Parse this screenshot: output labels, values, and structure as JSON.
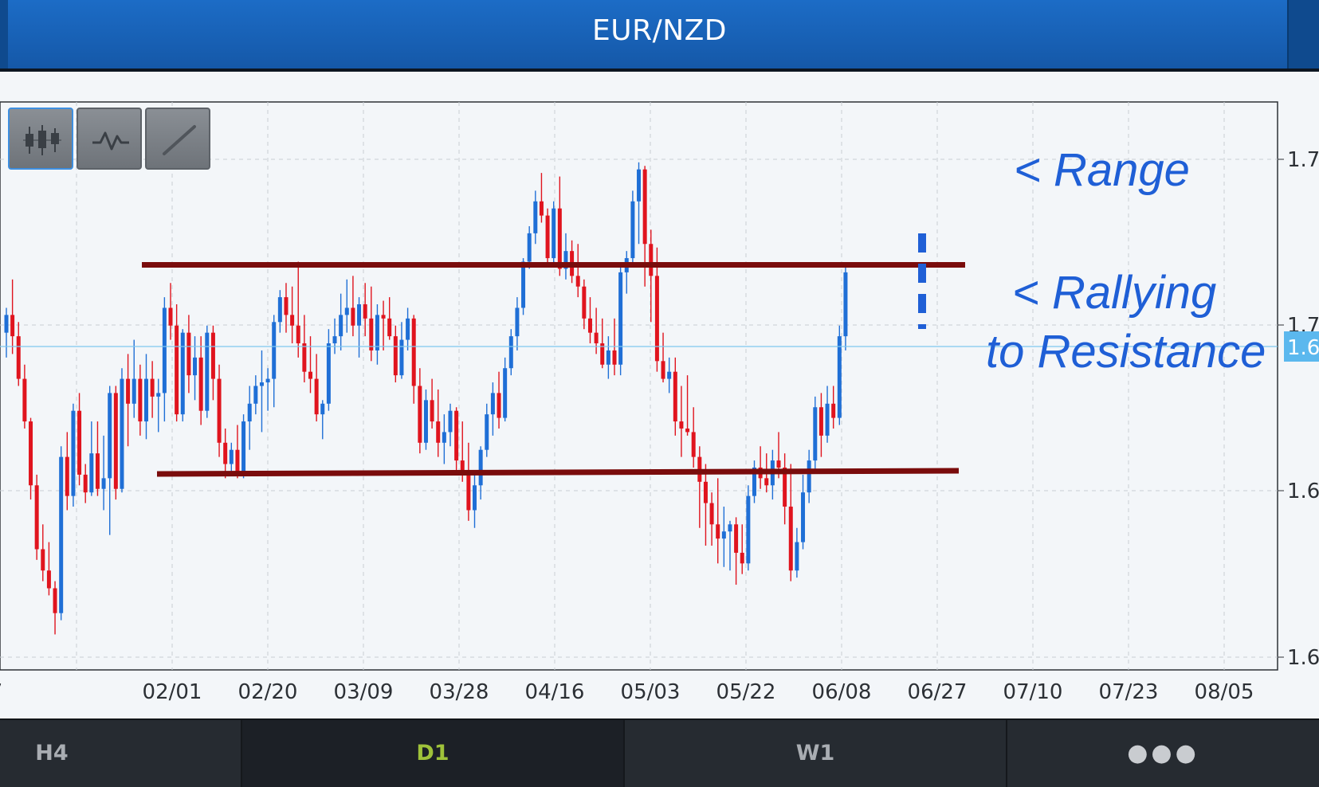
{
  "header": {
    "title": "EUR/NZD"
  },
  "toolbar": {
    "buttons": [
      {
        "name": "candlestick-chart-button",
        "icon": "candlestick-icon",
        "active": true
      },
      {
        "name": "line-chart-button",
        "icon": "line-chart-icon",
        "active": false
      },
      {
        "name": "draw-line-button",
        "icon": "trendline-icon",
        "active": false
      }
    ]
  },
  "timeframes": {
    "h4": "H4",
    "d1": "D1",
    "w1": "W1",
    "more": "●●●"
  },
  "annotations": {
    "range": "< Range",
    "rallying_line1": "< Rallying",
    "rallying_line2": "to Resistance"
  },
  "colors": {
    "bull": "#1f6fd6",
    "bear": "#e0141e",
    "sr_line": "#7a0c0c",
    "annotation": "#1f5fd6",
    "price_line": "#7ec8f0",
    "price_tag": "#5bb8ee",
    "active_tab": "#9fc23a"
  },
  "chart_data": {
    "type": "candlestick",
    "symbol": "EUR/NZD",
    "timeframe": "D1",
    "x_tick_labels": [
      "7",
      "02/01",
      "02/20",
      "03/09",
      "03/28",
      "04/16",
      "05/03",
      "05/22",
      "06/08",
      "06/27",
      "07/10",
      "07/23",
      "08/05"
    ],
    "y_tick_labels": [
      "1.7",
      "1.7",
      "1.6",
      "1.6"
    ],
    "current_price_label": "1.6",
    "ylim": [
      1.57,
      1.73
    ],
    "resistance": 1.685,
    "support": 1.623,
    "candles": [
      [
        1.665,
        1.672,
        1.658,
        1.67
      ],
      [
        1.67,
        1.68,
        1.659,
        1.664
      ],
      [
        1.664,
        1.668,
        1.65,
        1.652
      ],
      [
        1.652,
        1.656,
        1.638,
        1.64
      ],
      [
        1.64,
        1.641,
        1.618,
        1.622
      ],
      [
        1.622,
        1.625,
        1.601,
        1.604
      ],
      [
        1.604,
        1.611,
        1.595,
        1.598
      ],
      [
        1.598,
        1.606,
        1.591,
        1.593
      ],
      [
        1.593,
        1.595,
        1.58,
        1.586
      ],
      [
        1.586,
        1.633,
        1.584,
        1.63
      ],
      [
        1.63,
        1.637,
        1.615,
        1.619
      ],
      [
        1.619,
        1.645,
        1.616,
        1.643
      ],
      [
        1.643,
        1.648,
        1.622,
        1.625
      ],
      [
        1.625,
        1.628,
        1.617,
        1.62
      ],
      [
        1.62,
        1.64,
        1.619,
        1.631
      ],
      [
        1.631,
        1.64,
        1.619,
        1.621
      ],
      [
        1.621,
        1.636,
        1.615,
        1.624
      ],
      [
        1.624,
        1.65,
        1.608,
        1.648
      ],
      [
        1.648,
        1.65,
        1.618,
        1.621
      ],
      [
        1.621,
        1.655,
        1.62,
        1.652
      ],
      [
        1.652,
        1.659,
        1.633,
        1.645
      ],
      [
        1.645,
        1.663,
        1.641,
        1.652
      ],
      [
        1.652,
        1.656,
        1.636,
        1.64
      ],
      [
        1.64,
        1.659,
        1.635,
        1.652
      ],
      [
        1.652,
        1.657,
        1.641,
        1.647
      ],
      [
        1.647,
        1.652,
        1.637,
        1.648
      ],
      [
        1.648,
        1.675,
        1.64,
        1.672
      ],
      [
        1.672,
        1.679,
        1.663,
        1.667
      ],
      [
        1.667,
        1.673,
        1.64,
        1.642
      ],
      [
        1.642,
        1.666,
        1.64,
        1.665
      ],
      [
        1.665,
        1.67,
        1.648,
        1.653
      ],
      [
        1.653,
        1.664,
        1.646,
        1.658
      ],
      [
        1.658,
        1.664,
        1.639,
        1.643
      ],
      [
        1.643,
        1.667,
        1.641,
        1.665
      ],
      [
        1.665,
        1.667,
        1.646,
        1.652
      ],
      [
        1.652,
        1.656,
        1.63,
        1.634
      ],
      [
        1.634,
        1.638,
        1.624,
        1.628
      ],
      [
        1.628,
        1.634,
        1.625,
        1.632
      ],
      [
        1.632,
        1.639,
        1.624,
        1.625
      ],
      [
        1.625,
        1.642,
        1.624,
        1.64
      ],
      [
        1.64,
        1.65,
        1.632,
        1.645
      ],
      [
        1.645,
        1.653,
        1.642,
        1.65
      ],
      [
        1.65,
        1.66,
        1.637,
        1.651
      ],
      [
        1.651,
        1.655,
        1.643,
        1.652
      ],
      [
        1.652,
        1.67,
        1.644,
        1.668
      ],
      [
        1.668,
        1.677,
        1.665,
        1.675
      ],
      [
        1.675,
        1.679,
        1.665,
        1.67
      ],
      [
        1.67,
        1.678,
        1.662,
        1.667
      ],
      [
        1.667,
        1.685,
        1.658,
        1.662
      ],
      [
        1.662,
        1.67,
        1.651,
        1.654
      ],
      [
        1.654,
        1.664,
        1.648,
        1.652
      ],
      [
        1.652,
        1.659,
        1.64,
        1.642
      ],
      [
        1.642,
        1.646,
        1.635,
        1.645
      ],
      [
        1.645,
        1.666,
        1.643,
        1.662
      ],
      [
        1.662,
        1.669,
        1.659,
        1.664
      ],
      [
        1.664,
        1.676,
        1.66,
        1.67
      ],
      [
        1.67,
        1.68,
        1.665,
        1.672
      ],
      [
        1.672,
        1.681,
        1.664,
        1.667
      ],
      [
        1.667,
        1.675,
        1.658,
        1.673
      ],
      [
        1.673,
        1.679,
        1.664,
        1.669
      ],
      [
        1.669,
        1.678,
        1.657,
        1.66
      ],
      [
        1.66,
        1.673,
        1.656,
        1.67
      ],
      [
        1.67,
        1.674,
        1.66,
        1.669
      ],
      [
        1.669,
        1.675,
        1.663,
        1.664
      ],
      [
        1.664,
        1.667,
        1.651,
        1.653
      ],
      [
        1.653,
        1.668,
        1.652,
        1.663
      ],
      [
        1.663,
        1.672,
        1.66,
        1.669
      ],
      [
        1.669,
        1.67,
        1.645,
        1.65
      ],
      [
        1.65,
        1.655,
        1.631,
        1.634
      ],
      [
        1.634,
        1.649,
        1.632,
        1.646
      ],
      [
        1.646,
        1.652,
        1.638,
        1.64
      ],
      [
        1.64,
        1.649,
        1.63,
        1.634
      ],
      [
        1.634,
        1.642,
        1.628,
        1.637
      ],
      [
        1.637,
        1.645,
        1.633,
        1.643
      ],
      [
        1.643,
        1.644,
        1.626,
        1.629
      ],
      [
        1.629,
        1.64,
        1.623,
        1.626
      ],
      [
        1.626,
        1.634,
        1.612,
        1.615
      ],
      [
        1.615,
        1.625,
        1.61,
        1.622
      ],
      [
        1.622,
        1.633,
        1.618,
        1.632
      ],
      [
        1.632,
        1.645,
        1.63,
        1.642
      ],
      [
        1.642,
        1.651,
        1.636,
        1.648
      ],
      [
        1.648,
        1.654,
        1.638,
        1.641
      ],
      [
        1.641,
        1.658,
        1.64,
        1.655
      ],
      [
        1.655,
        1.666,
        1.653,
        1.664
      ],
      [
        1.664,
        1.675,
        1.66,
        1.672
      ],
      [
        1.672,
        1.686,
        1.67,
        1.685
      ],
      [
        1.685,
        1.695,
        1.683,
        1.693
      ],
      [
        1.693,
        1.705,
        1.69,
        1.702
      ],
      [
        1.702,
        1.71,
        1.696,
        1.698
      ],
      [
        1.698,
        1.7,
        1.684,
        1.686
      ],
      [
        1.686,
        1.702,
        1.684,
        1.7
      ],
      [
        1.7,
        1.709,
        1.681,
        1.683
      ],
      [
        1.683,
        1.693,
        1.68,
        1.688
      ],
      [
        1.688,
        1.691,
        1.679,
        1.681
      ],
      [
        1.681,
        1.69,
        1.675,
        1.678
      ],
      [
        1.678,
        1.68,
        1.666,
        1.669
      ],
      [
        1.669,
        1.675,
        1.662,
        1.665
      ],
      [
        1.665,
        1.672,
        1.659,
        1.662
      ],
      [
        1.662,
        1.669,
        1.655,
        1.656
      ],
      [
        1.656,
        1.664,
        1.652,
        1.66
      ],
      [
        1.66,
        1.669,
        1.653,
        1.656
      ],
      [
        1.656,
        1.684,
        1.653,
        1.682
      ],
      [
        1.682,
        1.688,
        1.676,
        1.686
      ],
      [
        1.686,
        1.705,
        1.684,
        1.702
      ],
      [
        1.702,
        1.713,
        1.69,
        1.711
      ],
      [
        1.711,
        1.712,
        1.678,
        1.69
      ],
      [
        1.69,
        1.694,
        1.668,
        1.681
      ],
      [
        1.681,
        1.689,
        1.654,
        1.657
      ],
      [
        1.657,
        1.665,
        1.651,
        1.652
      ],
      [
        1.652,
        1.658,
        1.648,
        1.654
      ],
      [
        1.654,
        1.658,
        1.636,
        1.64
      ],
      [
        1.64,
        1.65,
        1.63,
        1.638
      ],
      [
        1.638,
        1.653,
        1.636,
        1.637
      ],
      [
        1.637,
        1.644,
        1.627,
        1.63
      ],
      [
        1.63,
        1.633,
        1.61,
        1.623
      ],
      [
        1.623,
        1.628,
        1.605,
        1.617
      ],
      [
        1.617,
        1.62,
        1.605,
        1.611
      ],
      [
        1.611,
        1.624,
        1.6,
        1.607
      ],
      [
        1.607,
        1.616,
        1.599,
        1.609
      ],
      [
        1.609,
        1.612,
        1.598,
        1.611
      ],
      [
        1.611,
        1.613,
        1.594,
        1.603
      ],
      [
        1.603,
        1.611,
        1.597,
        1.6
      ],
      [
        1.6,
        1.622,
        1.598,
        1.619
      ],
      [
        1.619,
        1.629,
        1.617,
        1.627
      ],
      [
        1.627,
        1.633,
        1.621,
        1.624
      ],
      [
        1.624,
        1.631,
        1.62,
        1.622
      ],
      [
        1.622,
        1.632,
        1.618,
        1.629
      ],
      [
        1.629,
        1.637,
        1.624,
        1.627
      ],
      [
        1.627,
        1.631,
        1.611,
        1.616
      ],
      [
        1.616,
        1.628,
        1.595,
        1.598
      ],
      [
        1.598,
        1.61,
        1.596,
        1.606
      ],
      [
        1.606,
        1.625,
        1.604,
        1.62
      ],
      [
        1.62,
        1.632,
        1.617,
        1.629
      ],
      [
        1.629,
        1.647,
        1.626,
        1.644
      ],
      [
        1.644,
        1.648,
        1.63,
        1.636
      ],
      [
        1.636,
        1.65,
        1.634,
        1.645
      ],
      [
        1.645,
        1.65,
        1.638,
        1.641
      ],
      [
        1.641,
        1.667,
        1.639,
        1.664
      ],
      [
        1.664,
        1.684,
        1.66,
        1.682
      ]
    ]
  }
}
